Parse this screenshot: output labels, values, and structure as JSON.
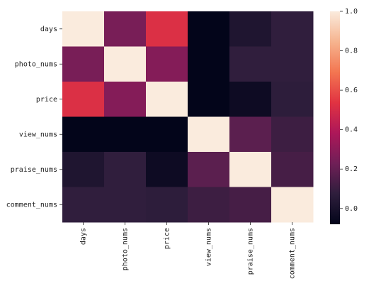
{
  "chart_data": {
    "type": "heatmap",
    "title": "",
    "xlabel": "",
    "ylabel": "",
    "categories": [
      "days",
      "photo_nums",
      "price",
      "view_nums",
      "praise_nums",
      "comment_nums"
    ],
    "rows": [
      "days",
      "photo_nums",
      "price",
      "view_nums",
      "praise_nums",
      "comment_nums"
    ],
    "values": [
      [
        1.0,
        0.25,
        0.52,
        -0.08,
        0.02,
        0.08
      ],
      [
        0.25,
        1.0,
        0.28,
        -0.08,
        0.08,
        0.08
      ],
      [
        0.52,
        0.28,
        1.0,
        -0.08,
        -0.04,
        0.07
      ],
      [
        -0.08,
        -0.08,
        -0.08,
        1.0,
        0.18,
        0.11
      ],
      [
        0.02,
        0.08,
        -0.04,
        0.18,
        1.0,
        0.13
      ],
      [
        0.08,
        0.08,
        0.07,
        0.11,
        0.13,
        1.0
      ]
    ],
    "colorbar": {
      "min": -0.08,
      "max": 1.0,
      "ticks": [
        "0.0",
        "0.2",
        "0.4",
        "0.6",
        "0.8",
        "1.0"
      ],
      "colormap": [
        "#03051a",
        "#2e1e3c",
        "#701f57",
        "#ad1759",
        "#e13342",
        "#f37651",
        "#f6b48f",
        "#faebdd"
      ]
    }
  }
}
